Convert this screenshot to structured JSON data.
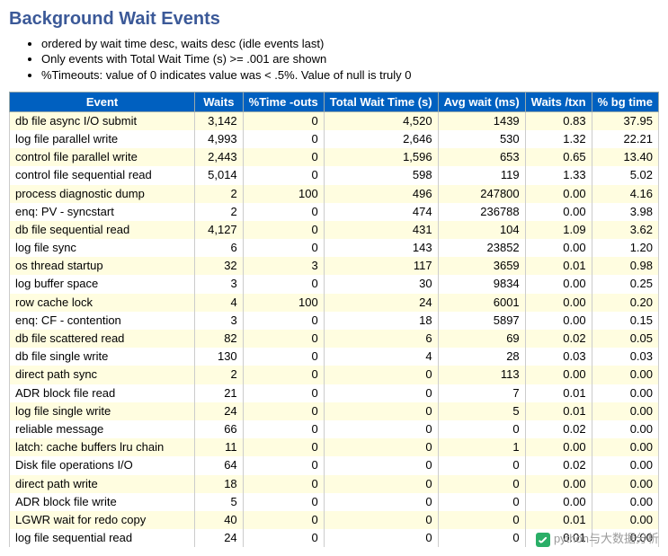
{
  "page": {
    "title": "Background Wait Events",
    "notes": [
      "ordered by wait time desc, waits desc (idle events last)",
      "Only events with Total Wait Time (s) >= .001 are shown",
      "%Timeouts: value of 0 indicates value was < .5%. Value of null is truly 0"
    ]
  },
  "table": {
    "columns": [
      {
        "label": "Event",
        "align": "txt",
        "width": "31%"
      },
      {
        "label": "Waits",
        "align": "num",
        "width": "8%"
      },
      {
        "label": "%Time -outs",
        "align": "num",
        "width": "12%"
      },
      {
        "label": "Total Wait Time (s)",
        "align": "num",
        "width": "17%"
      },
      {
        "label": "Avg wait (ms)",
        "align": "num",
        "width": "12%"
      },
      {
        "label": "Waits /txn",
        "align": "num",
        "width": "10%"
      },
      {
        "label": "% bg time",
        "align": "num",
        "width": "10%"
      }
    ],
    "rows": [
      [
        "db file async I/O submit",
        "3,142",
        "0",
        "4,520",
        "1439",
        "0.83",
        "37.95"
      ],
      [
        "log file parallel write",
        "4,993",
        "0",
        "2,646",
        "530",
        "1.32",
        "22.21"
      ],
      [
        "control file parallel write",
        "2,443",
        "0",
        "1,596",
        "653",
        "0.65",
        "13.40"
      ],
      [
        "control file sequential read",
        "5,014",
        "0",
        "598",
        "119",
        "1.33",
        "5.02"
      ],
      [
        "process diagnostic dump",
        "2",
        "100",
        "496",
        "247800",
        "0.00",
        "4.16"
      ],
      [
        "enq: PV - syncstart",
        "2",
        "0",
        "474",
        "236788",
        "0.00",
        "3.98"
      ],
      [
        "db file sequential read",
        "4,127",
        "0",
        "431",
        "104",
        "1.09",
        "3.62"
      ],
      [
        "log file sync",
        "6",
        "0",
        "143",
        "23852",
        "0.00",
        "1.20"
      ],
      [
        "os thread startup",
        "32",
        "3",
        "117",
        "3659",
        "0.01",
        "0.98"
      ],
      [
        "log buffer space",
        "3",
        "0",
        "30",
        "9834",
        "0.00",
        "0.25"
      ],
      [
        "row cache lock",
        "4",
        "100",
        "24",
        "6001",
        "0.00",
        "0.20"
      ],
      [
        "enq: CF - contention",
        "3",
        "0",
        "18",
        "5897",
        "0.00",
        "0.15"
      ],
      [
        "db file scattered read",
        "82",
        "0",
        "6",
        "69",
        "0.02",
        "0.05"
      ],
      [
        "db file single write",
        "130",
        "0",
        "4",
        "28",
        "0.03",
        "0.03"
      ],
      [
        "direct path sync",
        "2",
        "0",
        "0",
        "113",
        "0.00",
        "0.00"
      ],
      [
        "ADR block file read",
        "21",
        "0",
        "0",
        "7",
        "0.01",
        "0.00"
      ],
      [
        "log file single write",
        "24",
        "0",
        "0",
        "5",
        "0.01",
        "0.00"
      ],
      [
        "reliable message",
        "66",
        "0",
        "0",
        "0",
        "0.02",
        "0.00"
      ],
      [
        "latch: cache buffers lru chain",
        "11",
        "0",
        "0",
        "1",
        "0.00",
        "0.00"
      ],
      [
        "Disk file operations I/O",
        "64",
        "0",
        "0",
        "0",
        "0.02",
        "0.00"
      ],
      [
        "direct path write",
        "18",
        "0",
        "0",
        "0",
        "0.00",
        "0.00"
      ],
      [
        "ADR block file write",
        "5",
        "0",
        "0",
        "0",
        "0.00",
        "0.00"
      ],
      [
        "LGWR wait for redo copy",
        "40",
        "0",
        "0",
        "0",
        "0.01",
        "0.00"
      ],
      [
        "log file sequential read",
        "24",
        "0",
        "0",
        "0",
        "0.01",
        "0.00"
      ]
    ],
    "header_bg": "#0060c0",
    "header_fg": "#ffffff",
    "row_odd_bg": "#fffde0",
    "row_even_bg": "#ffffff"
  },
  "watermark": {
    "text": "python与大数据分析"
  }
}
